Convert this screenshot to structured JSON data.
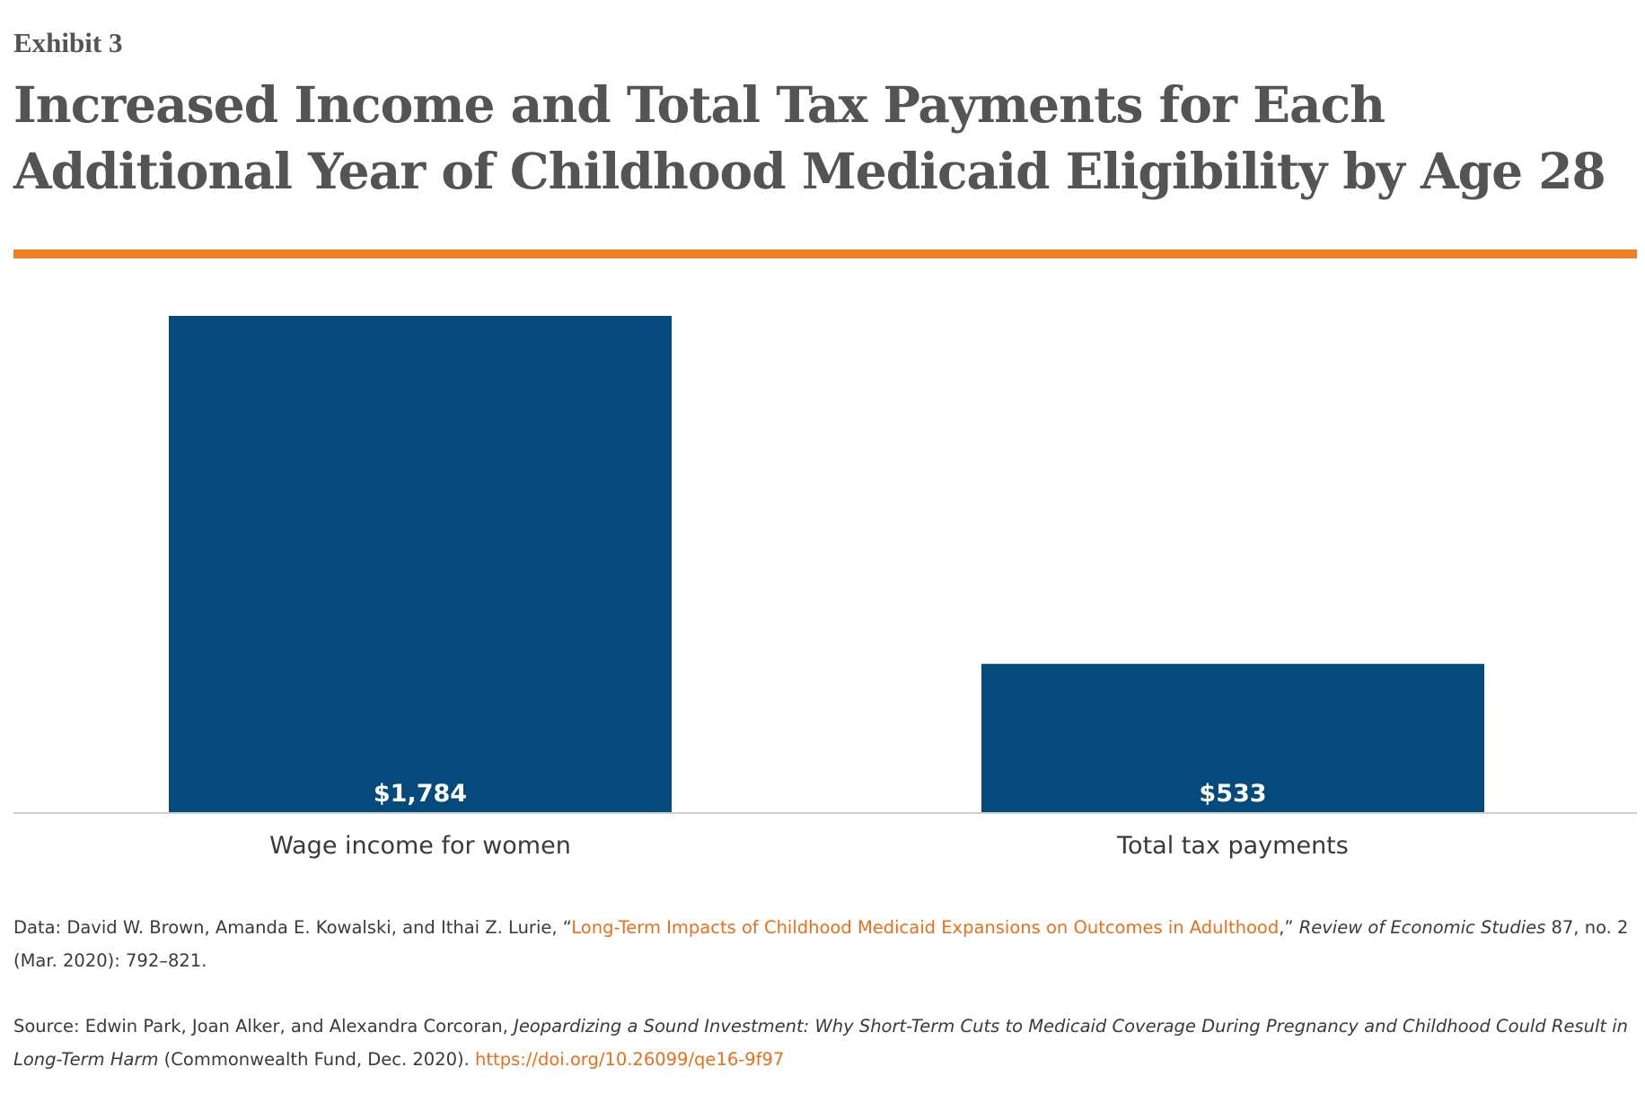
{
  "exhibit_label": "Exhibit 3",
  "colors": {
    "title": "#545454",
    "accent_rule": "#f07f22",
    "bar": "#044a7c",
    "baseline": "#cfcfcf",
    "link": "#ea6f1a",
    "text": "#3a3a3a"
  },
  "chart_data": {
    "type": "bar",
    "title": "Increased Income and Total Tax Payments for Each Additional Year of Childhood Medicaid Eligibility by Age 28",
    "categories": [
      "Wage income for women",
      "Total tax payments"
    ],
    "values": [
      1784,
      533
    ],
    "data_labels": [
      "$1,784",
      "$533"
    ],
    "ylim": [
      0,
      1784
    ],
    "xlabel": "",
    "ylabel": "",
    "grid": false,
    "legend": "none"
  },
  "notes": {
    "data": {
      "prefix": "Data: David W. Brown, Amanda E. Kowalski, and Ithai Z. Lurie, “",
      "link_text": "Long-Term Impacts of Childhood Medicaid Expansions on Outcomes in Adulthood",
      "mid": ",” ",
      "journal": "Review of Economic Studies",
      "suffix": " 87, no. 2 (Mar. 2020): 792–821."
    },
    "source": {
      "prefix": "Source: Edwin Park, Joan Alker, and Alexandra Corcoran, ",
      "report_title": "Jeopardizing a Sound Investment: Why Short-Term Cuts to Medicaid Coverage During Pregnancy and Childhood Could Result in Long-Term Harm",
      "suffix": " (Commonwealth Fund, Dec. 2020). ",
      "doi_text": "https://doi.org/10.26099/qe16-9f97"
    }
  }
}
